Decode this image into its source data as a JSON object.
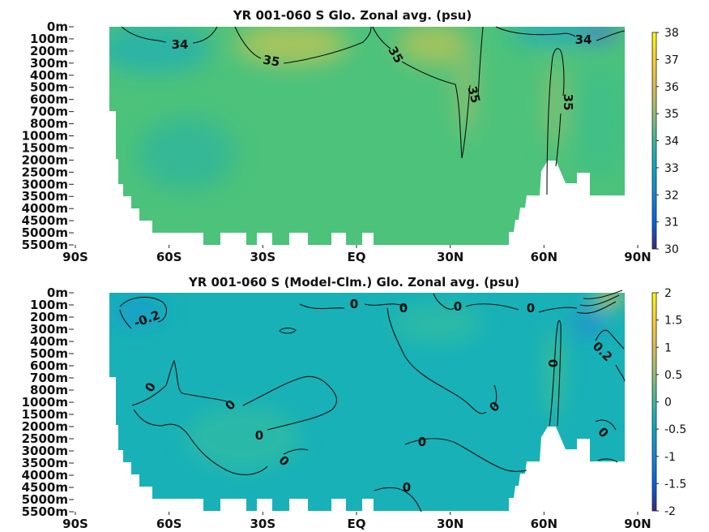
{
  "chart_data": [
    {
      "type": "heatmap",
      "title": "YR 001-060 S Glo. Zonal avg. (psu)",
      "variable": "salinity",
      "units": "psu",
      "x_tick_labels": [
        "90S",
        "60S",
        "30S",
        "EQ",
        "30N",
        "60N",
        "90N"
      ],
      "x_ticks": [
        -90,
        -60,
        -30,
        0,
        30,
        60,
        90
      ],
      "xlim": [
        -90,
        90
      ],
      "depth_tick_labels": [
        "0m",
        "100m",
        "200m",
        "300m",
        "400m",
        "500m",
        "600m",
        "700m",
        "800m",
        "1000m",
        "1500m",
        "2000m",
        "2500m",
        "3000m",
        "3500m",
        "4000m",
        "4500m",
        "5000m",
        "5500m"
      ],
      "depths": [
        0,
        100,
        200,
        300,
        400,
        500,
        600,
        700,
        800,
        1000,
        1500,
        2000,
        2500,
        3000,
        3500,
        4000,
        4500,
        5000,
        5500
      ],
      "colorbar": {
        "range": [
          30,
          38
        ],
        "ticks": [
          30,
          31,
          32,
          33,
          34,
          35,
          36,
          37,
          38
        ],
        "tick_labels": [
          "30",
          "31",
          "32",
          "33",
          "34",
          "35",
          "36",
          "37",
          "38"
        ]
      },
      "contour_labels": [
        "34",
        "35",
        "35",
        "35",
        "35",
        "34"
      ],
      "colormap": "parula",
      "grid": false
    },
    {
      "type": "heatmap",
      "title": "YR 001-060 S (Model-Clm.) Glo. Zonal avg. (psu)",
      "variable": "salinity bias",
      "units": "psu",
      "x_tick_labels": [
        "90S",
        "60S",
        "30S",
        "EQ",
        "30N",
        "60N",
        "90N"
      ],
      "x_ticks": [
        -90,
        -60,
        -30,
        0,
        30,
        60,
        90
      ],
      "xlim": [
        -90,
        90
      ],
      "depth_tick_labels": [
        "0m",
        "100m",
        "200m",
        "300m",
        "400m",
        "500m",
        "600m",
        "700m",
        "800m",
        "1000m",
        "1500m",
        "2000m",
        "2500m",
        "3000m",
        "3500m",
        "4000m",
        "4500m",
        "5000m",
        "5500m"
      ],
      "depths": [
        0,
        100,
        200,
        300,
        400,
        500,
        600,
        700,
        800,
        1000,
        1500,
        2000,
        2500,
        3000,
        3500,
        4000,
        4500,
        5000,
        5500
      ],
      "colorbar": {
        "range": [
          -2,
          2
        ],
        "ticks": [
          -2,
          -1.5,
          -1,
          -0.5,
          0,
          0.5,
          1,
          1.5,
          2
        ],
        "tick_labels": [
          "-2",
          "-1.5",
          "-1",
          "-0.5",
          "0",
          "0.5",
          "1",
          "1.5",
          "2"
        ]
      },
      "contour_labels": [
        "-0.2",
        "0",
        "0",
        "0",
        "0",
        "0",
        "0",
        "0",
        "0",
        "0",
        "0",
        "0",
        "0.2",
        "0",
        "0",
        "0"
      ],
      "colormap": "parula",
      "grid": false
    }
  ]
}
